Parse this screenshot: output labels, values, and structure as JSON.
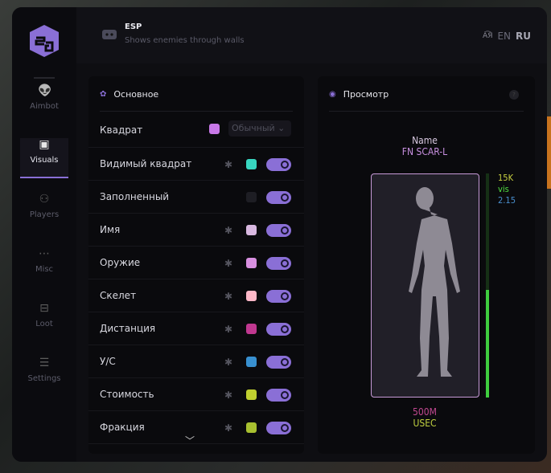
{
  "sidebar": {
    "items": [
      {
        "label": "Aimbot",
        "icon": "alien-icon"
      },
      {
        "label": "Visuals",
        "icon": "vr-headset-icon",
        "active": true
      },
      {
        "label": "Players",
        "icon": "users-icon"
      },
      {
        "label": "Misc",
        "icon": "dots-icon"
      },
      {
        "label": "Loot",
        "icon": "toolbox-icon"
      },
      {
        "label": "Settings",
        "icon": "list-icon"
      }
    ]
  },
  "header": {
    "title": "ESP",
    "subtitle": "Shows enemies through walls",
    "languages": [
      "EN",
      "RU"
    ],
    "active_language": "RU"
  },
  "main": {
    "title": "Основное",
    "box_row": {
      "label": "Квадрат",
      "color": "#c878e8",
      "mode": "Обычный"
    },
    "rows": [
      {
        "label": "Видимый квадрат",
        "color": "#38d6c0",
        "gear": true,
        "enabled": true
      },
      {
        "label": "Заполненный",
        "color": "#1e1e24",
        "gear": false,
        "enabled": true
      },
      {
        "label": "Имя",
        "color": "#d8b8e0",
        "gear": true,
        "enabled": true
      },
      {
        "label": "Оружие",
        "color": "#d890e0",
        "gear": true,
        "enabled": true
      },
      {
        "label": "Скелет",
        "color": "#ffb8c8",
        "gear": true,
        "enabled": true
      },
      {
        "label": "Дистанция",
        "color": "#c03890",
        "gear": true,
        "enabled": true
      },
      {
        "label": "У/С",
        "color": "#3890d0",
        "gear": true,
        "enabled": true
      },
      {
        "label": "Стоимость",
        "color": "#c0d030",
        "gear": true,
        "enabled": true
      },
      {
        "label": "Фракция",
        "color": "#a8c030",
        "gear": true,
        "enabled": true
      }
    ]
  },
  "preview": {
    "title": "Просмотр",
    "help": "?",
    "name": "Name",
    "weapon": "FN SCAR-L",
    "value": "15K",
    "visible": "vis",
    "kd": "2.15",
    "distance": "500M",
    "faction": "USEC",
    "health_percent": 48,
    "colors": {
      "name": "#d8c8e0",
      "weapon": "#c890e0",
      "value": "#c8d040",
      "visible": "#50e040",
      "kd": "#4a90d0",
      "distance": "#c04890",
      "faction": "#c0d040"
    }
  },
  "accent": "#8a6fd6"
}
